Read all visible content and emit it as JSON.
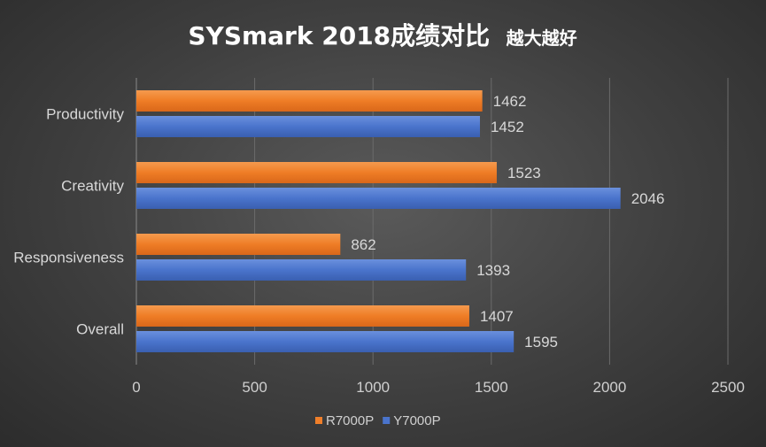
{
  "chart_data": {
    "type": "bar",
    "orientation": "horizontal",
    "title": "SYSmark 2018成绩对比",
    "subtitle": "越大越好",
    "categories": [
      "Productivity",
      "Creativity",
      "Responsiveness",
      "Overall"
    ],
    "series": [
      {
        "name": "R7000P",
        "color": "#f07f2a",
        "values": [
          1462,
          1523,
          862,
          1407
        ]
      },
      {
        "name": "Y7000P",
        "color": "#4a74cc",
        "values": [
          1452,
          2046,
          1393,
          1595
        ]
      }
    ],
    "xlim": [
      0,
      2500
    ],
    "xticks": [
      0,
      500,
      1000,
      1500,
      2000,
      2500
    ],
    "grid": true,
    "legend": "bottom",
    "data_labels": true
  }
}
